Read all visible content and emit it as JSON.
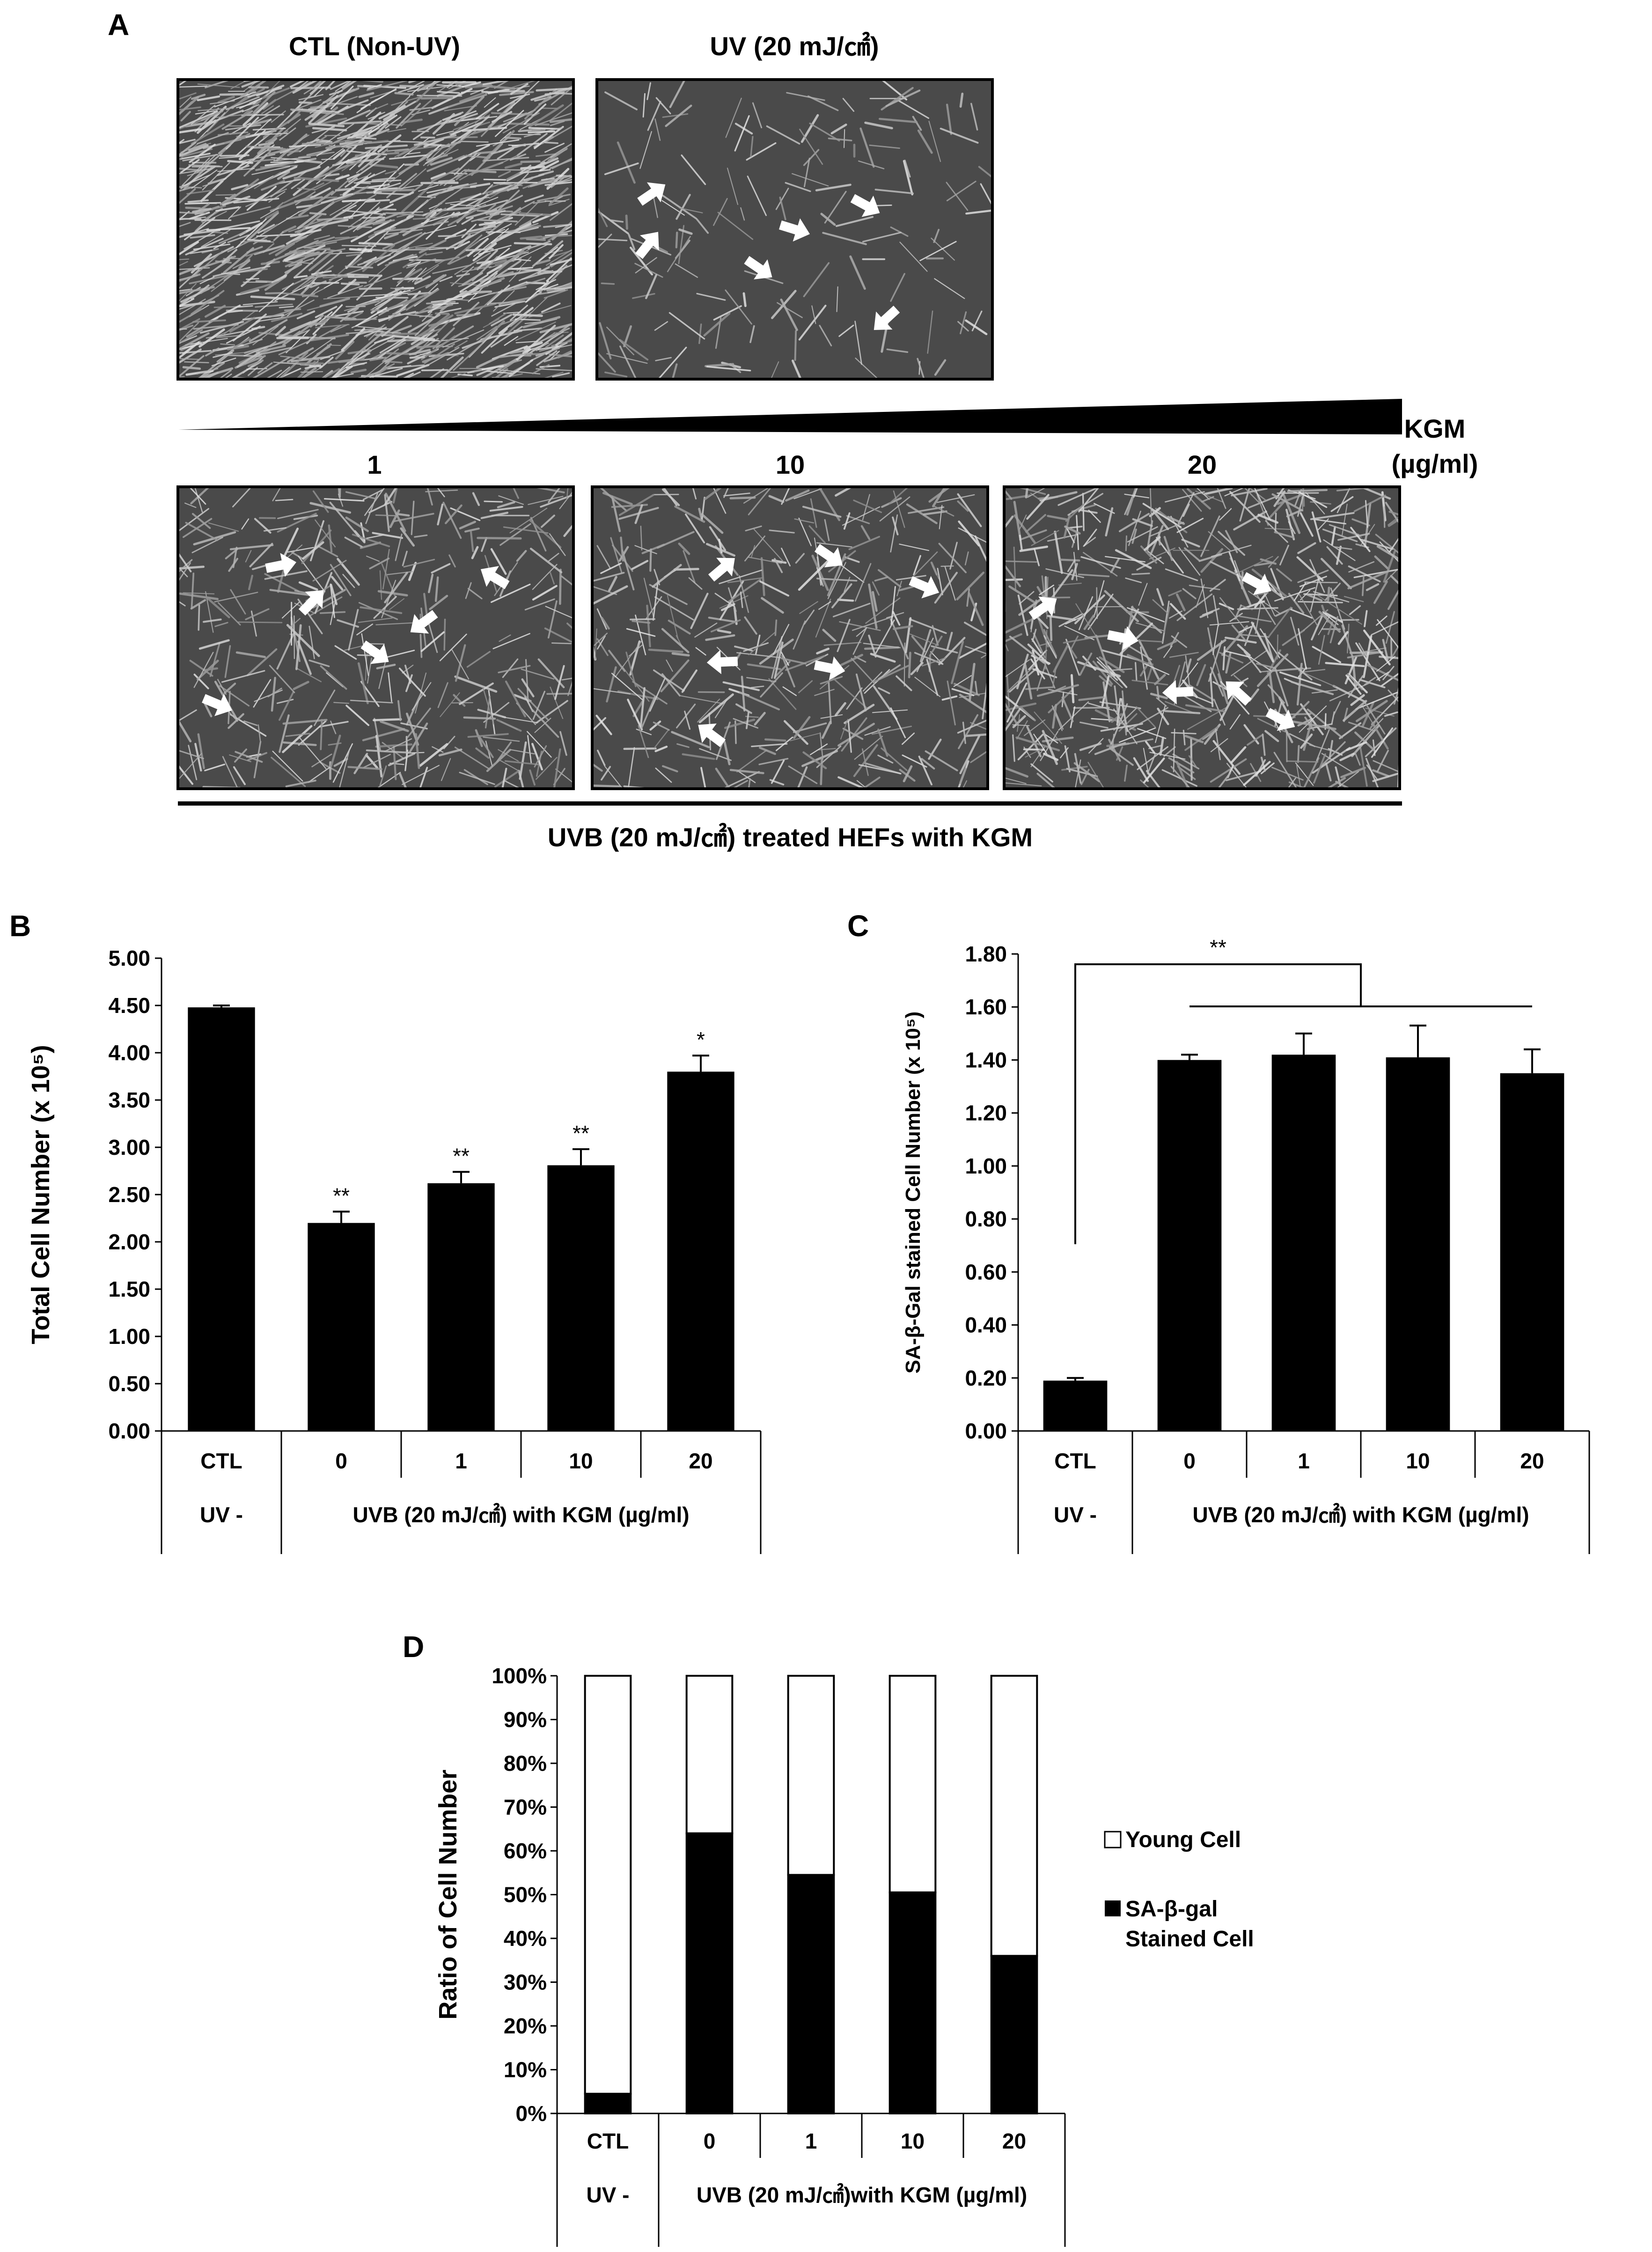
{
  "colors": {
    "bar": "#000000",
    "young": "#ffffff",
    "micrograph_bg": "#4a4a4a",
    "cell": "#b8b8b8",
    "arrow": "#ffffff"
  },
  "panel_a": {
    "letter": "A",
    "top_titles": [
      "CTL (Non-UV)",
      "UV (20 mJ/㎠)"
    ],
    "wedge_label_1": "KGM",
    "wedge_label_2": "(µg/ml)",
    "bottom_titles": [
      "1",
      "10",
      "20"
    ],
    "caption": "UVB (20 mJ/㎠) treated HEFs with KGM",
    "images": [
      {
        "name": "ctl-non-uv",
        "density": "high",
        "arrows": 0
      },
      {
        "name": "uv-20",
        "density": "sparse",
        "arrows": 6
      },
      {
        "name": "kgm-1",
        "density": "medium",
        "arrows": 6
      },
      {
        "name": "kgm-10",
        "density": "medium",
        "arrows": 6
      },
      {
        "name": "kgm-20",
        "density": "medium-high",
        "arrows": 6
      }
    ]
  },
  "panel_b": {
    "letter": "B"
  },
  "panel_c": {
    "letter": "C",
    "bracket_label": "**"
  },
  "panel_d": {
    "letter": "D"
  },
  "chart_data": [
    {
      "panel": "B",
      "type": "bar",
      "ylabel": "Total Cell Number (x 10⁵)",
      "ylim": [
        0,
        5
      ],
      "yticks": [
        "0.00",
        "0.50",
        "1.00",
        "1.50",
        "2.00",
        "2.50",
        "3.00",
        "3.50",
        "4.00",
        "4.50",
        "5.00"
      ],
      "categories": [
        "CTL",
        "0",
        "1",
        "10",
        "20"
      ],
      "values": [
        4.48,
        2.2,
        2.62,
        2.81,
        3.8
      ],
      "errors": [
        0.02,
        0.12,
        0.12,
        0.17,
        0.17
      ],
      "significance": [
        "",
        "**",
        "**",
        "**",
        "*"
      ],
      "group_labels": [
        "UV -",
        "UVB (20 mJ/㎠) with KGM (µg/ml)"
      ],
      "grid": false
    },
    {
      "panel": "C",
      "type": "bar",
      "ylabel": "SA-β-Gal stained Cell Number (x 10⁵)",
      "ylim": [
        0,
        1.8
      ],
      "yticks": [
        "0.00",
        "0.20",
        "0.40",
        "0.60",
        "0.80",
        "1.00",
        "1.20",
        "1.40",
        "1.60",
        "1.80"
      ],
      "categories": [
        "CTL",
        "0",
        "1",
        "10",
        "20"
      ],
      "values": [
        0.19,
        1.4,
        1.42,
        1.41,
        1.35
      ],
      "errors": [
        0.01,
        0.02,
        0.08,
        0.12,
        0.09
      ],
      "group_labels": [
        "UV -",
        "UVB (20 mJ/㎠) with KGM (µg/ml)"
      ],
      "grid": false
    },
    {
      "panel": "D",
      "type": "bar",
      "stacked": true,
      "ylabel": "Ratio of Cell Number",
      "ylim": [
        0,
        100
      ],
      "yticks": [
        "0%",
        "10%",
        "20%",
        "30%",
        "40%",
        "50%",
        "60%",
        "70%",
        "80%",
        "90%",
        "100%"
      ],
      "categories": [
        "CTL",
        "0",
        "1",
        "10",
        "20"
      ],
      "series": [
        {
          "name": "SA-β-gal Stained Cell",
          "values": [
            4.5,
            64.0,
            54.5,
            50.5,
            36.0
          ]
        },
        {
          "name": "Young Cell",
          "values": [
            95.5,
            36.0,
            45.5,
            49.5,
            64.0
          ]
        }
      ],
      "legend_young": "Young Cell",
      "legend_sa_1": "SA-β-gal",
      "legend_sa_2": "Stained Cell",
      "legend": "right",
      "group_labels": [
        "UV -",
        "UVB (20 mJ/㎠)with KGM (µg/ml)"
      ],
      "grid": false
    }
  ]
}
